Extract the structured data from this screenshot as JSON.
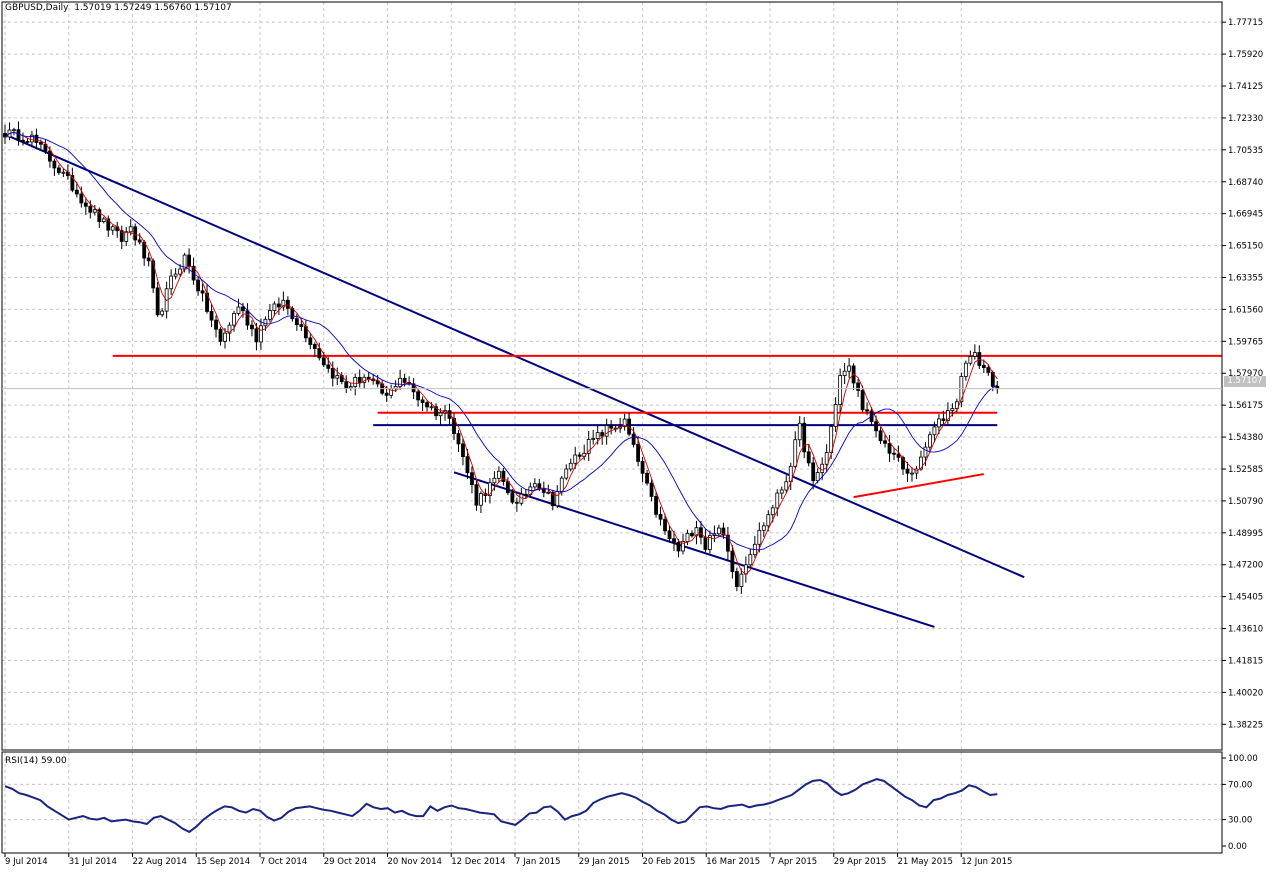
{
  "header": {
    "symbol": "GBPUSD,Daily",
    "open": "1.57019",
    "high": "1.57249",
    "low": "1.56760",
    "close": "1.57107",
    "current_price": "1.57107"
  },
  "rsi_panel": {
    "caption": "RSI(14) 59.00"
  },
  "colors": {
    "trendline": "#00007F",
    "support_resistance": "#FF0000",
    "candle": "#000000",
    "ma_fast": "#CC0000",
    "ma_slow": "#0000CC",
    "rsi_line": "#1A237E",
    "grid": "#C8C8C8"
  },
  "chart_data": [
    {
      "type": "candlestick",
      "title": "GBPUSD,Daily",
      "x_tick_labels": [
        "9 Jul 2014",
        "31 Jul 2014",
        "22 Aug 2014",
        "15 Sep 2014",
        "7 Oct 2014",
        "29 Oct 2014",
        "20 Nov 2014",
        "12 Dec 2014",
        "7 Jan 2015",
        "29 Jan 2015",
        "20 Feb 2015",
        "16 Mar 2015",
        "7 Apr 2015",
        "29 Apr 2015",
        "21 May 2015",
        "12 Jun 2015"
      ],
      "y_tick_labels": [
        "1.77715",
        "1.75920",
        "1.74125",
        "1.72330",
        "1.70535",
        "1.68740",
        "1.66945",
        "1.65150",
        "1.63355",
        "1.61560",
        "1.59765",
        "1.57970",
        "1.56175",
        "1.54380",
        "1.52585",
        "1.50790",
        "1.48995",
        "1.47200",
        "1.45405",
        "1.43610",
        "1.41815",
        "1.40020",
        "1.38225"
      ],
      "ylim": [
        1.3678,
        1.7885
      ],
      "grid": true,
      "price_path": [
        [
          0,
          1.715
        ],
        [
          6,
          1.712
        ],
        [
          10,
          1.7
        ],
        [
          14,
          1.688
        ],
        [
          18,
          1.675
        ],
        [
          22,
          1.664
        ],
        [
          26,
          1.655
        ],
        [
          28,
          1.662
        ],
        [
          32,
          1.64
        ],
        [
          34,
          1.61
        ],
        [
          37,
          1.632
        ],
        [
          40,
          1.645
        ],
        [
          43,
          1.628
        ],
        [
          48,
          1.597
        ],
        [
          52,
          1.618
        ],
        [
          56,
          1.6
        ],
        [
          58,
          1.612
        ],
        [
          62,
          1.62
        ],
        [
          67,
          1.602
        ],
        [
          72,
          1.582
        ],
        [
          76,
          1.572
        ],
        [
          80,
          1.578
        ],
        [
          85,
          1.566
        ],
        [
          88,
          1.578
        ],
        [
          92,
          1.566
        ],
        [
          96,
          1.558
        ],
        [
          99,
          1.557
        ],
        [
          102,
          1.532
        ],
        [
          105,
          1.508
        ],
        [
          110,
          1.522
        ],
        [
          114,
          1.505
        ],
        [
          118,
          1.52
        ],
        [
          122,
          1.508
        ],
        [
          126,
          1.53
        ],
        [
          130,
          1.54
        ],
        [
          134,
          1.548
        ],
        [
          138,
          1.552
        ],
        [
          141,
          1.53
        ],
        [
          144,
          1.508
        ],
        [
          147,
          1.49
        ],
        [
          150,
          1.48
        ],
        [
          154,
          1.495
        ],
        [
          156,
          1.482
        ],
        [
          158,
          1.492
        ],
        [
          160,
          1.488
        ],
        [
          163,
          1.462
        ],
        [
          166,
          1.48
        ],
        [
          170,
          1.5
        ],
        [
          174,
          1.52
        ],
        [
          177,
          1.549
        ],
        [
          180,
          1.517
        ],
        [
          183,
          1.535
        ],
        [
          186,
          1.578
        ],
        [
          188,
          1.582
        ],
        [
          191,
          1.562
        ],
        [
          194,
          1.545
        ],
        [
          198,
          1.534
        ],
        [
          201,
          1.522
        ],
        [
          204,
          1.53
        ],
        [
          206,
          1.545
        ],
        [
          209,
          1.555
        ],
        [
          212,
          1.565
        ],
        [
          214,
          1.588
        ],
        [
          216,
          1.589
        ],
        [
          218,
          1.583
        ],
        [
          220,
          1.575
        ],
        [
          221,
          1.571
        ]
      ],
      "overlays": {
        "trendlines": [
          {
            "name": "upper-descending",
            "from": [
              0,
              1.714
            ],
            "to": [
              227,
              1.465
            ]
          },
          {
            "name": "lower-channel",
            "from": [
              100,
              1.524
            ],
            "to": [
              207,
              1.437
            ]
          },
          {
            "name": "blue-horizontal",
            "from": [
              82,
              1.5505
            ],
            "to": [
              221,
              1.5505
            ]
          }
        ],
        "horizontal_levels": [
          {
            "name": "resistance",
            "from": [
              24,
              1.5895
            ],
            "to": [
              279,
              1.5895
            ]
          },
          {
            "name": "support",
            "from": [
              83,
              1.5575
            ],
            "to": [
              221,
              1.5575
            ]
          }
        ],
        "support_line": {
          "name": "rising-support",
          "from": [
            189,
            1.51
          ],
          "to": [
            218,
            1.523
          ]
        }
      }
    },
    {
      "type": "line",
      "title": "RSI(14) 59.00",
      "y_tick_labels": [
        "100.00",
        "70.00",
        "30.00",
        "0.00"
      ],
      "ylim": [
        0,
        100
      ],
      "latest_value": 59.0,
      "values": [
        68,
        65,
        60,
        58,
        55,
        52,
        45,
        40,
        35,
        30,
        32,
        34,
        31,
        30,
        32,
        28,
        29,
        30,
        28,
        27,
        25,
        32,
        34,
        30,
        26,
        20,
        16,
        22,
        30,
        36,
        41,
        45,
        44,
        40,
        38,
        42,
        40,
        33,
        29,
        32,
        39,
        43,
        44,
        45,
        43,
        41,
        40,
        38,
        36,
        34,
        40,
        48,
        44,
        42,
        43,
        38,
        40,
        36,
        34,
        34,
        45,
        40,
        44,
        46,
        43,
        42,
        40,
        38,
        37,
        36,
        28,
        26,
        24,
        30,
        37,
        38,
        44,
        45,
        39,
        30,
        34,
        36,
        40,
        49,
        53,
        56,
        58,
        60,
        58,
        55,
        50,
        46,
        40,
        36,
        30,
        26,
        28,
        36,
        44,
        45,
        43,
        42,
        45,
        46,
        47,
        44,
        46,
        47,
        49,
        52,
        55,
        58,
        64,
        70,
        74,
        75,
        71,
        63,
        58,
        60,
        64,
        70,
        73,
        76,
        74,
        68,
        62,
        56,
        52,
        46,
        44,
        52,
        54,
        58,
        60,
        63,
        69,
        67,
        62,
        58,
        59
      ]
    }
  ]
}
